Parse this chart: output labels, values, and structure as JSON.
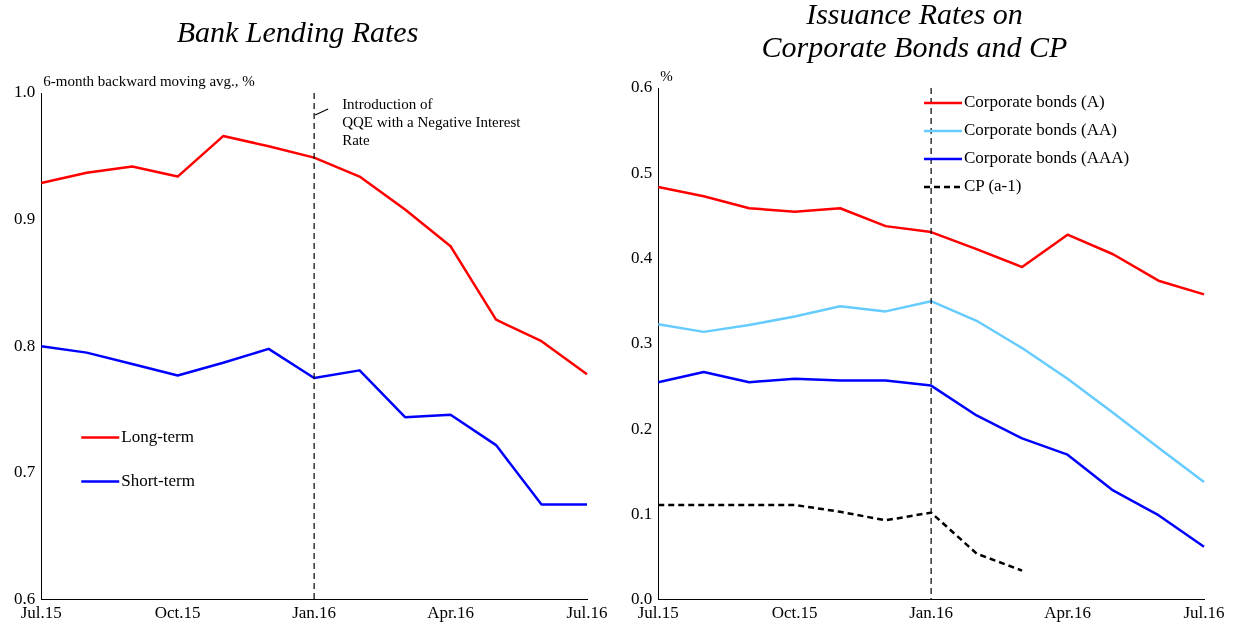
{
  "chart_data": [
    {
      "type": "line",
      "title": "Bank Lending Rates",
      "ylabel": "6-month backward moving avg., %",
      "categories": [
        "Jul.15",
        null,
        null,
        "Oct.15",
        null,
        null,
        "Jan.16",
        null,
        null,
        "Apr.16",
        null,
        null,
        "Jul.16"
      ],
      "series": [
        {
          "name": "Long-term",
          "color": "#ff0000",
          "values": [
            0.929,
            0.937,
            0.942,
            0.934,
            0.966,
            0.958,
            0.949,
            0.934,
            0.908,
            0.879,
            0.821,
            0.804,
            0.778
          ]
        },
        {
          "name": "Short-term",
          "color": "#0000ff",
          "values": [
            0.8,
            0.795,
            0.786,
            0.777,
            0.787,
            0.798,
            0.775,
            0.781,
            0.744,
            0.746,
            0.722,
            0.675,
            0.675
          ]
        }
      ],
      "ylim": [
        0.6,
        1.0
      ],
      "yticks": [
        {
          "value": 0.6,
          "label": "0.6"
        },
        {
          "value": 0.7,
          "label": "0.7"
        },
        {
          "value": 0.8,
          "label": "0.8"
        },
        {
          "value": 0.9,
          "label": "0.9"
        },
        {
          "value": 1.0,
          "label": "1.0"
        }
      ],
      "ref_lines": [
        {
          "axis": "x",
          "value": "Jan.16",
          "label": "Introduction of\nQQE with a Negative Interest\nRate",
          "color": "#000000",
          "line_style": "dashed"
        }
      ],
      "legend": "left",
      "marker": "none",
      "grid": false
    },
    {
      "type": "line",
      "title": "Issuance Rates on\nCorporate Bonds and CP",
      "ylabel": "%",
      "categories": [
        "Jul.15",
        null,
        null,
        "Oct.15",
        null,
        null,
        "Jan.16",
        null,
        null,
        "Apr.16",
        null,
        null,
        "Jul.16"
      ],
      "series": [
        {
          "name": "Corporate bonds (A)",
          "color": "#ff0000",
          "values": [
            0.484,
            0.473,
            0.459,
            0.455,
            0.459,
            0.438,
            0.431,
            0.411,
            0.39,
            0.428,
            0.405,
            0.374,
            0.358
          ]
        },
        {
          "name": "Corporate bonds (AA)",
          "color": "#66ccff",
          "values": [
            0.323,
            0.314,
            0.322,
            0.332,
            0.344,
            0.338,
            0.35,
            0.327,
            0.295,
            0.259,
            0.219,
            0.178,
            0.138
          ]
        },
        {
          "name": "Corporate bonds (AAA)",
          "color": "#0000ff",
          "values": [
            0.255,
            0.267,
            0.255,
            0.259,
            0.257,
            0.257,
            0.251,
            0.216,
            0.189,
            0.17,
            0.128,
            0.099,
            0.062
          ]
        },
        {
          "name": "CP (a-1)",
          "color": "#000000",
          "line_style": "dashed",
          "values": [
            0.111,
            0.111,
            0.111,
            0.111,
            0.103,
            0.093,
            0.102,
            0.054,
            0.034,
            null,
            null,
            null,
            null
          ]
        }
      ],
      "ylim": [
        0,
        0.6
      ],
      "yticks": [
        {
          "value": 0,
          "label": "0.0"
        },
        {
          "value": 0.1,
          "label": "0.1"
        },
        {
          "value": 0.2,
          "label": "0.2"
        },
        {
          "value": 0.3,
          "label": "0.3"
        },
        {
          "value": 0.4,
          "label": "0.4"
        },
        {
          "value": 0.5,
          "label": "0.5"
        },
        {
          "value": 0.6,
          "label": "0.6"
        }
      ],
      "ref_lines": [
        {
          "axis": "x",
          "value": "Jan.16",
          "color": "#000000",
          "line_style": "dashed"
        }
      ],
      "legend": "top right",
      "marker": "none",
      "grid": false
    }
  ]
}
